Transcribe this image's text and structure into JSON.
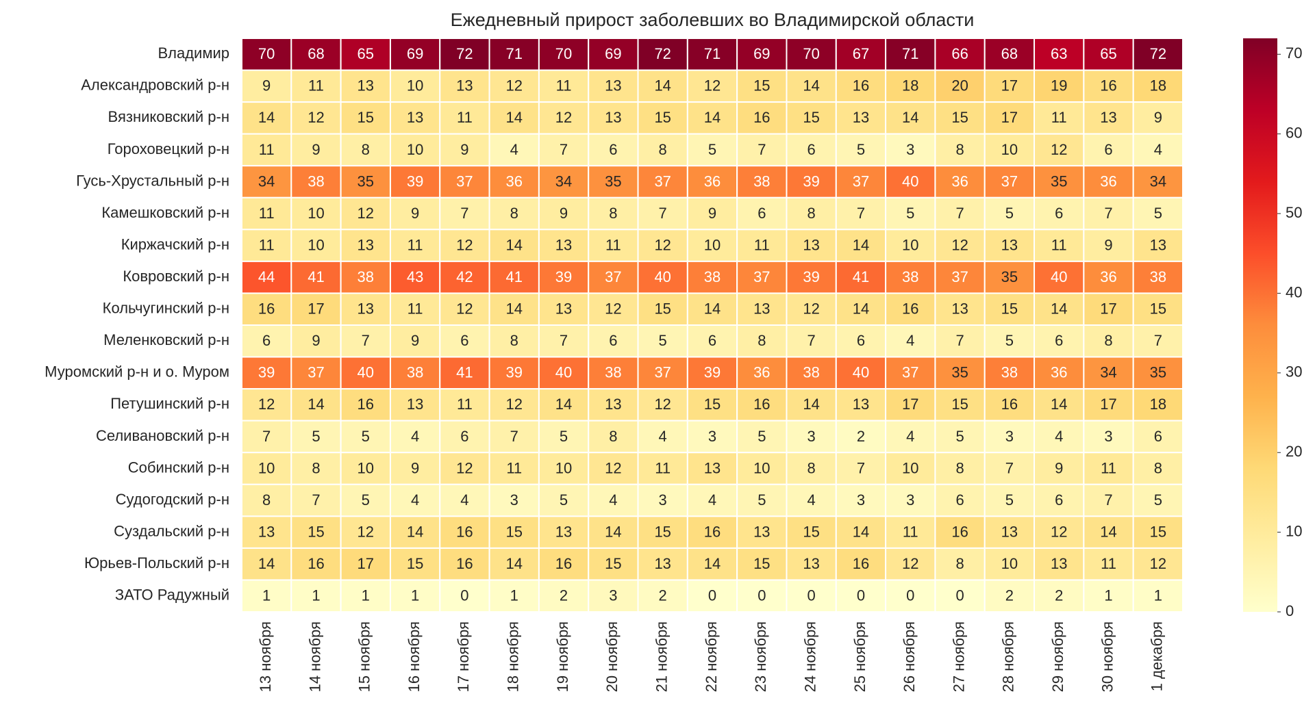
{
  "chart_data": {
    "type": "heatmap",
    "title": "Ежедневный прирост заболевших во Владимирской области",
    "x": [
      "13 ноября",
      "14 ноября",
      "15 ноября",
      "16 ноября",
      "17 ноября",
      "18 ноября",
      "19 ноября",
      "20 ноября",
      "21 ноября",
      "22 ноября",
      "23 ноября",
      "24 ноября",
      "25 ноября",
      "26 ноября",
      "27 ноября",
      "28 ноября",
      "29 ноября",
      "30 ноября",
      "1 декабря"
    ],
    "categories": [
      "Владимир",
      "Александровский р-н",
      "Вязниковский р-н",
      "Гороховецкий р-н",
      "Гусь-Хрустальный р-н",
      "Камешковский р-н",
      "Киржачский р-н",
      "Ковровский р-н",
      "Кольчугинский р-н",
      "Меленковский р-н",
      "Муромский р-н и о. Муром",
      "Петушинский р-н",
      "Селивановский р-н",
      "Собинский р-н",
      "Судогодский р-н",
      "Суздальский р-н",
      "Юрьев-Польский р-н",
      "ЗАТО Радужный"
    ],
    "values": [
      [
        70,
        68,
        65,
        69,
        72,
        71,
        70,
        69,
        72,
        71,
        69,
        70,
        67,
        71,
        66,
        68,
        63,
        65,
        72
      ],
      [
        9,
        11,
        13,
        10,
        13,
        12,
        11,
        13,
        14,
        12,
        15,
        14,
        16,
        18,
        20,
        17,
        19,
        16,
        18
      ],
      [
        14,
        12,
        15,
        13,
        11,
        14,
        12,
        13,
        15,
        14,
        16,
        15,
        13,
        14,
        15,
        17,
        11,
        13,
        9
      ],
      [
        11,
        9,
        8,
        10,
        9,
        4,
        7,
        6,
        8,
        5,
        7,
        6,
        5,
        3,
        8,
        10,
        12,
        6,
        4
      ],
      [
        34,
        38,
        35,
        39,
        37,
        36,
        34,
        35,
        37,
        36,
        38,
        39,
        37,
        40,
        36,
        37,
        35,
        36,
        34
      ],
      [
        11,
        10,
        12,
        9,
        7,
        8,
        9,
        8,
        7,
        9,
        6,
        8,
        7,
        5,
        7,
        5,
        6,
        7,
        5
      ],
      [
        11,
        10,
        13,
        11,
        12,
        14,
        13,
        11,
        12,
        10,
        11,
        13,
        14,
        10,
        12,
        13,
        11,
        9,
        13
      ],
      [
        44,
        41,
        38,
        43,
        42,
        41,
        39,
        37,
        40,
        38,
        37,
        39,
        41,
        38,
        37,
        35,
        40,
        36,
        38
      ],
      [
        16,
        17,
        13,
        11,
        12,
        14,
        13,
        12,
        15,
        14,
        13,
        12,
        14,
        16,
        13,
        15,
        14,
        17,
        15
      ],
      [
        6,
        9,
        7,
        9,
        6,
        8,
        7,
        6,
        5,
        6,
        8,
        7,
        6,
        4,
        7,
        5,
        6,
        8,
        7
      ],
      [
        39,
        37,
        40,
        38,
        41,
        39,
        40,
        38,
        37,
        39,
        36,
        38,
        40,
        37,
        35,
        38,
        36,
        34,
        35
      ],
      [
        12,
        14,
        16,
        13,
        11,
        12,
        14,
        13,
        12,
        15,
        16,
        14,
        13,
        17,
        15,
        16,
        14,
        17,
        18
      ],
      [
        7,
        5,
        5,
        4,
        6,
        7,
        5,
        8,
        4,
        3,
        5,
        3,
        2,
        4,
        5,
        3,
        4,
        3,
        6
      ],
      [
        10,
        8,
        10,
        9,
        12,
        11,
        10,
        12,
        11,
        13,
        10,
        8,
        7,
        10,
        8,
        7,
        9,
        11,
        8
      ],
      [
        8,
        7,
        5,
        4,
        4,
        3,
        5,
        4,
        3,
        4,
        5,
        4,
        3,
        3,
        6,
        5,
        6,
        7,
        5
      ],
      [
        13,
        15,
        12,
        14,
        16,
        15,
        13,
        14,
        15,
        16,
        13,
        15,
        14,
        11,
        16,
        13,
        12,
        14,
        15
      ],
      [
        14,
        16,
        17,
        15,
        16,
        14,
        16,
        15,
        13,
        14,
        15,
        13,
        16,
        12,
        8,
        10,
        13,
        11,
        12
      ],
      [
        1,
        1,
        1,
        1,
        0,
        1,
        2,
        3,
        2,
        0,
        0,
        0,
        0,
        0,
        0,
        2,
        2,
        1,
        1
      ]
    ],
    "colormap": [
      "#ffffcc",
      "#ffeda0",
      "#fed976",
      "#feb24c",
      "#fd8d3c",
      "#fc4e2a",
      "#e31a1c",
      "#bd0026",
      "#800026"
    ],
    "zlim": [
      0,
      72
    ],
    "zticks": [
      0,
      10,
      20,
      30,
      40,
      50,
      60,
      70
    ]
  }
}
